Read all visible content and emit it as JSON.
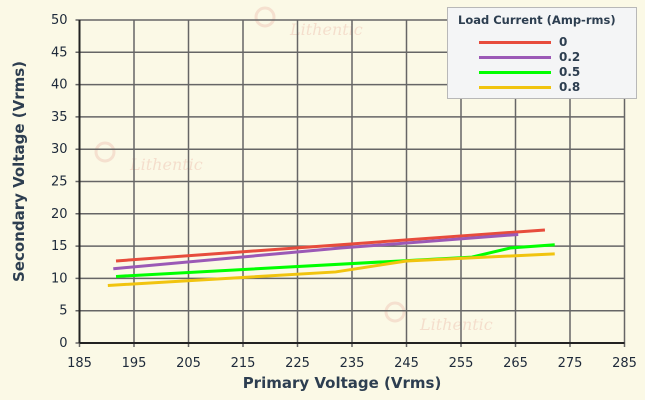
{
  "watermark": "Lithentic",
  "chart_data": {
    "type": "line",
    "title": "",
    "xlabel": "Primary Voltage (Vrms)",
    "ylabel": "Secondary Voltage (Vrms)",
    "xlim": [
      185,
      285
    ],
    "ylim": [
      0,
      50
    ],
    "xticks": [
      185,
      195,
      205,
      215,
      225,
      235,
      245,
      255,
      265,
      275,
      285
    ],
    "yticks": [
      0,
      5,
      10,
      15,
      20,
      25,
      30,
      35,
      40,
      45,
      50
    ],
    "grid": true,
    "legend_title": "Load Current (Amp-rms)",
    "legend_position": "top-right",
    "series": [
      {
        "name": "0",
        "color": "#e74c3c",
        "points": [
          [
            191.7,
            12.7
          ],
          [
            270.4,
            17.5
          ]
        ]
      },
      {
        "name": "0.2",
        "color": "#9b59b6",
        "points": [
          [
            191.2,
            11.5
          ],
          [
            232.9,
            14.7
          ],
          [
            265.5,
            16.8
          ]
        ]
      },
      {
        "name": "0.5",
        "color": "#00ff00",
        "points": [
          [
            191.7,
            10.3
          ],
          [
            243.8,
            12.7
          ],
          [
            257,
            13.3
          ],
          [
            264,
            14.7
          ],
          [
            272.2,
            15.2
          ]
        ]
      },
      {
        "name": "0.8",
        "color": "#f1c40f",
        "points": [
          [
            190.2,
            8.9
          ],
          [
            232,
            11.0
          ],
          [
            245,
            12.7
          ],
          [
            272.2,
            13.8
          ]
        ]
      }
    ]
  }
}
